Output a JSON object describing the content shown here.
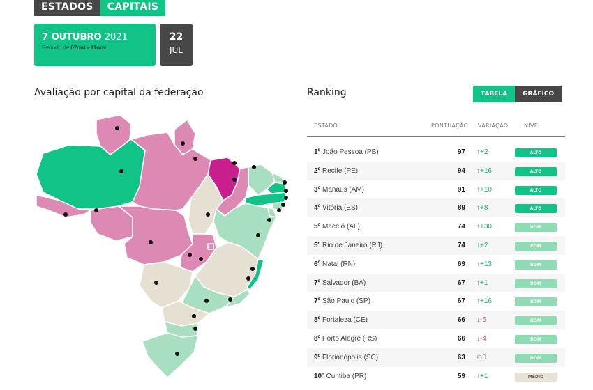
{
  "tabs": {
    "estados": "ESTADOS",
    "capitais": "CAPITAIS"
  },
  "date_card": {
    "day_month": "7 OUTUBRO",
    "year": "2021",
    "period_label": "Período de",
    "period_range": "07out - 11nov"
  },
  "next_date": {
    "day": "22",
    "month": "JUL"
  },
  "map": {
    "title": "Avaliação por capital da federação"
  },
  "ranking": {
    "title": "Ranking",
    "toggle": {
      "tabela": "TABELA",
      "grafico": "GRÁFICO"
    },
    "headers": {
      "estado": "ESTADO",
      "pontuacao": "PONTUAÇÃO",
      "variacao": "VARIAÇÃO",
      "nivel": "NÍVEL"
    },
    "rows": [
      {
        "pos": "1º",
        "name": "João Pessoa (PB)",
        "score": "97",
        "var": "↑+2",
        "dir": "up",
        "level": "ALTO"
      },
      {
        "pos": "2º",
        "name": "Recife (PE)",
        "score": "94",
        "var": "↑+16",
        "dir": "up",
        "level": "ALTO"
      },
      {
        "pos": "3º",
        "name": "Manaus (AM)",
        "score": "91",
        "var": "↑+10",
        "dir": "up",
        "level": "ALTO"
      },
      {
        "pos": "4º",
        "name": "Vitória (ES)",
        "score": "89",
        "var": "↑+8",
        "dir": "up",
        "level": "ALTO"
      },
      {
        "pos": "5º",
        "name": "Maceió (AL)",
        "score": "74",
        "var": "↑+30",
        "dir": "up",
        "level": "BOM"
      },
      {
        "pos": "5º",
        "name": "Rio de Janeiro (RJ)",
        "score": "74",
        "var": "↑+2",
        "dir": "up",
        "level": "BOM"
      },
      {
        "pos": "6º",
        "name": "Natal (RN)",
        "score": "69",
        "var": "↑+13",
        "dir": "up",
        "level": "BOM"
      },
      {
        "pos": "7º",
        "name": "Salvador (BA)",
        "score": "67",
        "var": "↑+1",
        "dir": "up",
        "level": "BOM"
      },
      {
        "pos": "7º",
        "name": "São Paulo (SP)",
        "score": "67",
        "var": "↑+16",
        "dir": "up",
        "level": "BOM"
      },
      {
        "pos": "8º",
        "name": "Fortaleza (CE)",
        "score": "66",
        "var": "↓-6",
        "dir": "down",
        "level": "BOM"
      },
      {
        "pos": "8º",
        "name": "Porto Alegre (RS)",
        "score": "66",
        "var": "↓-4",
        "dir": "down",
        "level": "BOM"
      },
      {
        "pos": "9º",
        "name": "Florianópolis (SC)",
        "score": "63",
        "var": "⊖0",
        "dir": "flat",
        "level": "BOM"
      },
      {
        "pos": "10º",
        "name": "Curitiba (PR)",
        "score": "59",
        "var": "↑+1",
        "dir": "up",
        "level": "MÉDIO"
      }
    ]
  },
  "colors": {
    "accent": "#12c387",
    "dark": "#474747",
    "alto": "#12c387",
    "bom": "#8fdcb4",
    "medio": "#e8e2d6",
    "baixo": "#dc8ab3",
    "muito_baixo": "#c91f8d",
    "map_mid_green": "#a8dfc0",
    "map_beige": "#e6e0d2"
  }
}
